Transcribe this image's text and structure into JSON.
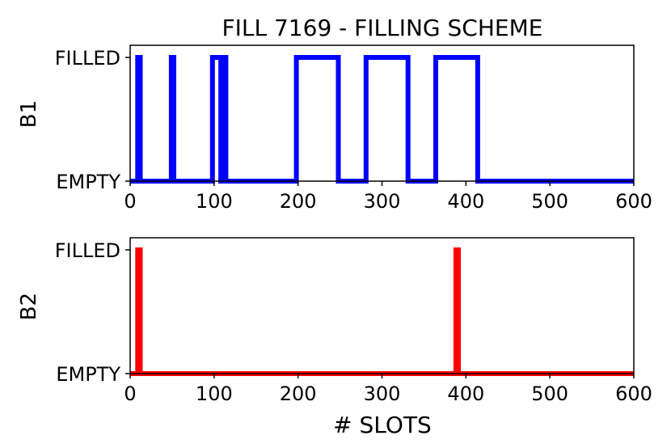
{
  "chart_data": [
    {
      "type": "line",
      "title": "FILL 7169 - FILLING SCHEME",
      "ylabel": "B1",
      "xlabel": "",
      "xlim": [
        0,
        600
      ],
      "x_ticks": [
        0,
        100,
        200,
        300,
        400,
        500,
        600
      ],
      "y_ticks": [
        "EMPTY",
        "FILLED"
      ],
      "color": "#0000ff",
      "series": [
        {
          "x": [
            0,
            9,
            9,
            12,
            12,
            49,
            49,
            52,
            52,
            98,
            98,
            108,
            108,
            111,
            111,
            114,
            114,
            198,
            198,
            248,
            248,
            281,
            281,
            331,
            331,
            364,
            364,
            414,
            414,
            600
          ],
          "y": [
            0,
            0,
            1,
            1,
            0,
            0,
            1,
            1,
            0,
            0,
            1,
            1,
            0,
            0,
            1,
            1,
            0,
            0,
            1,
            1,
            0,
            0,
            1,
            1,
            0,
            0,
            1,
            1,
            0,
            0
          ]
        }
      ]
    },
    {
      "type": "line",
      "title": "",
      "ylabel": "B2",
      "xlabel": "# SLOTS",
      "xlim": [
        0,
        600
      ],
      "x_ticks": [
        0,
        100,
        200,
        300,
        400,
        500,
        600
      ],
      "y_ticks": [
        "EMPTY",
        "FILLED"
      ],
      "color": "#ff0000",
      "series": [
        {
          "x": [
            0,
            9,
            9,
            12,
            12,
            388,
            388,
            391,
            391,
            600
          ],
          "y": [
            0,
            0,
            1,
            1,
            0,
            0,
            1,
            1,
            0,
            0
          ]
        }
      ]
    }
  ]
}
